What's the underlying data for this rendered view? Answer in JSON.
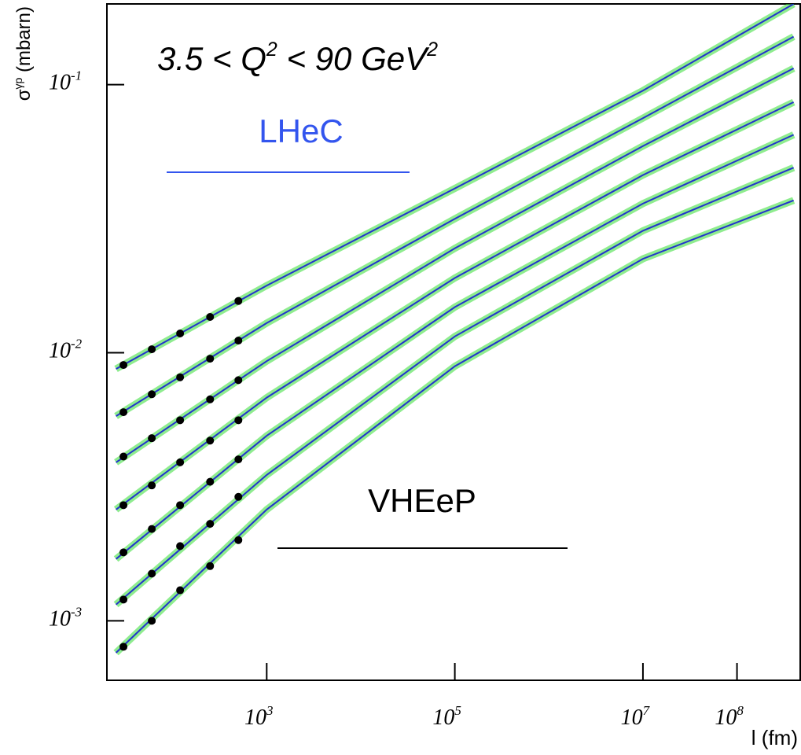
{
  "chart_data": {
    "type": "band-scatter",
    "title": "3.5 < Q^2 < 90 GeV^2",
    "y_label": "σ^γp (mbarn)",
    "x_label": "l (fm)",
    "annotations": [
      "LHeC",
      "VHEeP"
    ],
    "xlog": true,
    "ylog": true,
    "xlim": [
      20,
      470000000
    ],
    "ylim": [
      0.0006,
      0.2
    ],
    "xticks": [
      {
        "value": 1000,
        "label": "10^3"
      },
      {
        "value": 100000,
        "label": "10^5"
      },
      {
        "value": 10000000,
        "label": "10^7"
      },
      {
        "value": 100000000,
        "label": "10^8"
      }
    ],
    "yticks": [
      {
        "value": 0.001,
        "label": "10^-3"
      },
      {
        "value": 0.01,
        "label": "10^-2"
      },
      {
        "value": 0.1,
        "label": "10^-1"
      }
    ],
    "band_color": "#33dd33",
    "line_color": "#2233cc",
    "point_color": "#000000",
    "x": [
      25,
      1000,
      100000,
      10000000,
      400000000
    ],
    "series": [
      {
        "values": [
          0.0087,
          0.0178,
          0.041,
          0.095,
          0.2
        ]
      },
      {
        "values": [
          0.0058,
          0.0129,
          0.0316,
          0.075,
          0.151
        ]
      },
      {
        "values": [
          0.0039,
          0.0093,
          0.0245,
          0.059,
          0.115
        ]
      },
      {
        "values": [
          0.0026,
          0.0068,
          0.019,
          0.046,
          0.086
        ]
      },
      {
        "values": [
          0.0017,
          0.0049,
          0.0148,
          0.036,
          0.065
        ]
      },
      {
        "values": [
          0.00115,
          0.0035,
          0.0115,
          0.0285,
          0.049
        ]
      },
      {
        "values": [
          0.00076,
          0.0026,
          0.0089,
          0.0224,
          0.037
        ]
      }
    ],
    "points_x": [
      30,
      60,
      120,
      250,
      500
    ],
    "points": [
      {
        "values": [
          0.009,
          0.0103,
          0.0118,
          0.0136,
          0.0156
        ]
      },
      {
        "values": [
          0.006,
          0.007,
          0.0081,
          0.0095,
          0.0111
        ]
      },
      {
        "values": [
          0.0041,
          0.0048,
          0.0056,
          0.0067,
          0.0079
        ]
      },
      {
        "values": [
          0.0027,
          0.0032,
          0.0039,
          0.0047,
          0.0056
        ]
      },
      {
        "values": [
          0.0018,
          0.0022,
          0.0027,
          0.0033,
          0.004
        ]
      },
      {
        "values": [
          0.0012,
          0.0015,
          0.0019,
          0.0023,
          0.0029
        ]
      },
      {
        "values": [
          0.0008,
          0.001,
          0.0013,
          0.0016,
          0.002
        ]
      }
    ]
  }
}
